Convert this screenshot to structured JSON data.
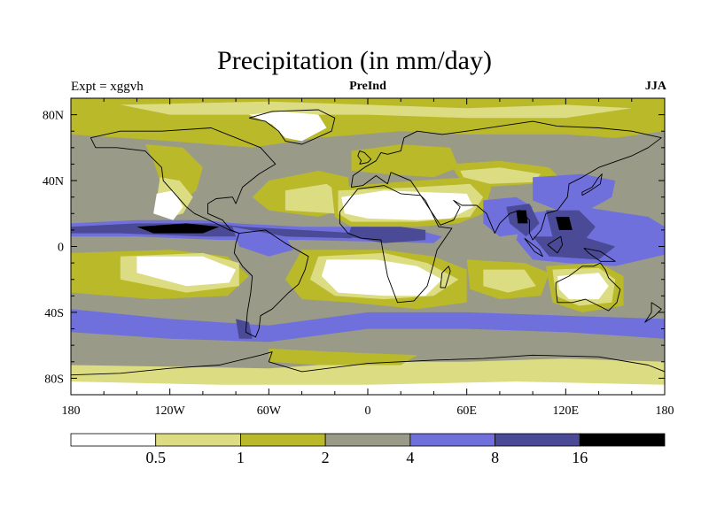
{
  "chart_data": {
    "type": "heatmap",
    "title": "Precipitation (in mm/day)",
    "subtitle_left": "Expt = xggvh",
    "subtitle_center": "PreInd",
    "subtitle_right": "JJA",
    "x_ticks": [
      "180",
      "120W",
      "60W",
      "0",
      "60E",
      "120E",
      "180"
    ],
    "x_tick_values": [
      -180,
      -120,
      -60,
      0,
      60,
      120,
      180
    ],
    "y_ticks": [
      "80N",
      "40N",
      "0",
      "40S",
      "80S"
    ],
    "y_tick_values": [
      80,
      40,
      0,
      -40,
      -80
    ],
    "xlim": [
      -180,
      180
    ],
    "ylim": [
      -90,
      90
    ],
    "colorbar": {
      "levels": [
        "0.5",
        "1",
        "2",
        "4",
        "8",
        "16"
      ],
      "colors": [
        "#ffffff",
        "#dcdc82",
        "#b9b92a",
        "#9a9a88",
        "#7070dc",
        "#4a4a96",
        "#000000"
      ]
    }
  }
}
